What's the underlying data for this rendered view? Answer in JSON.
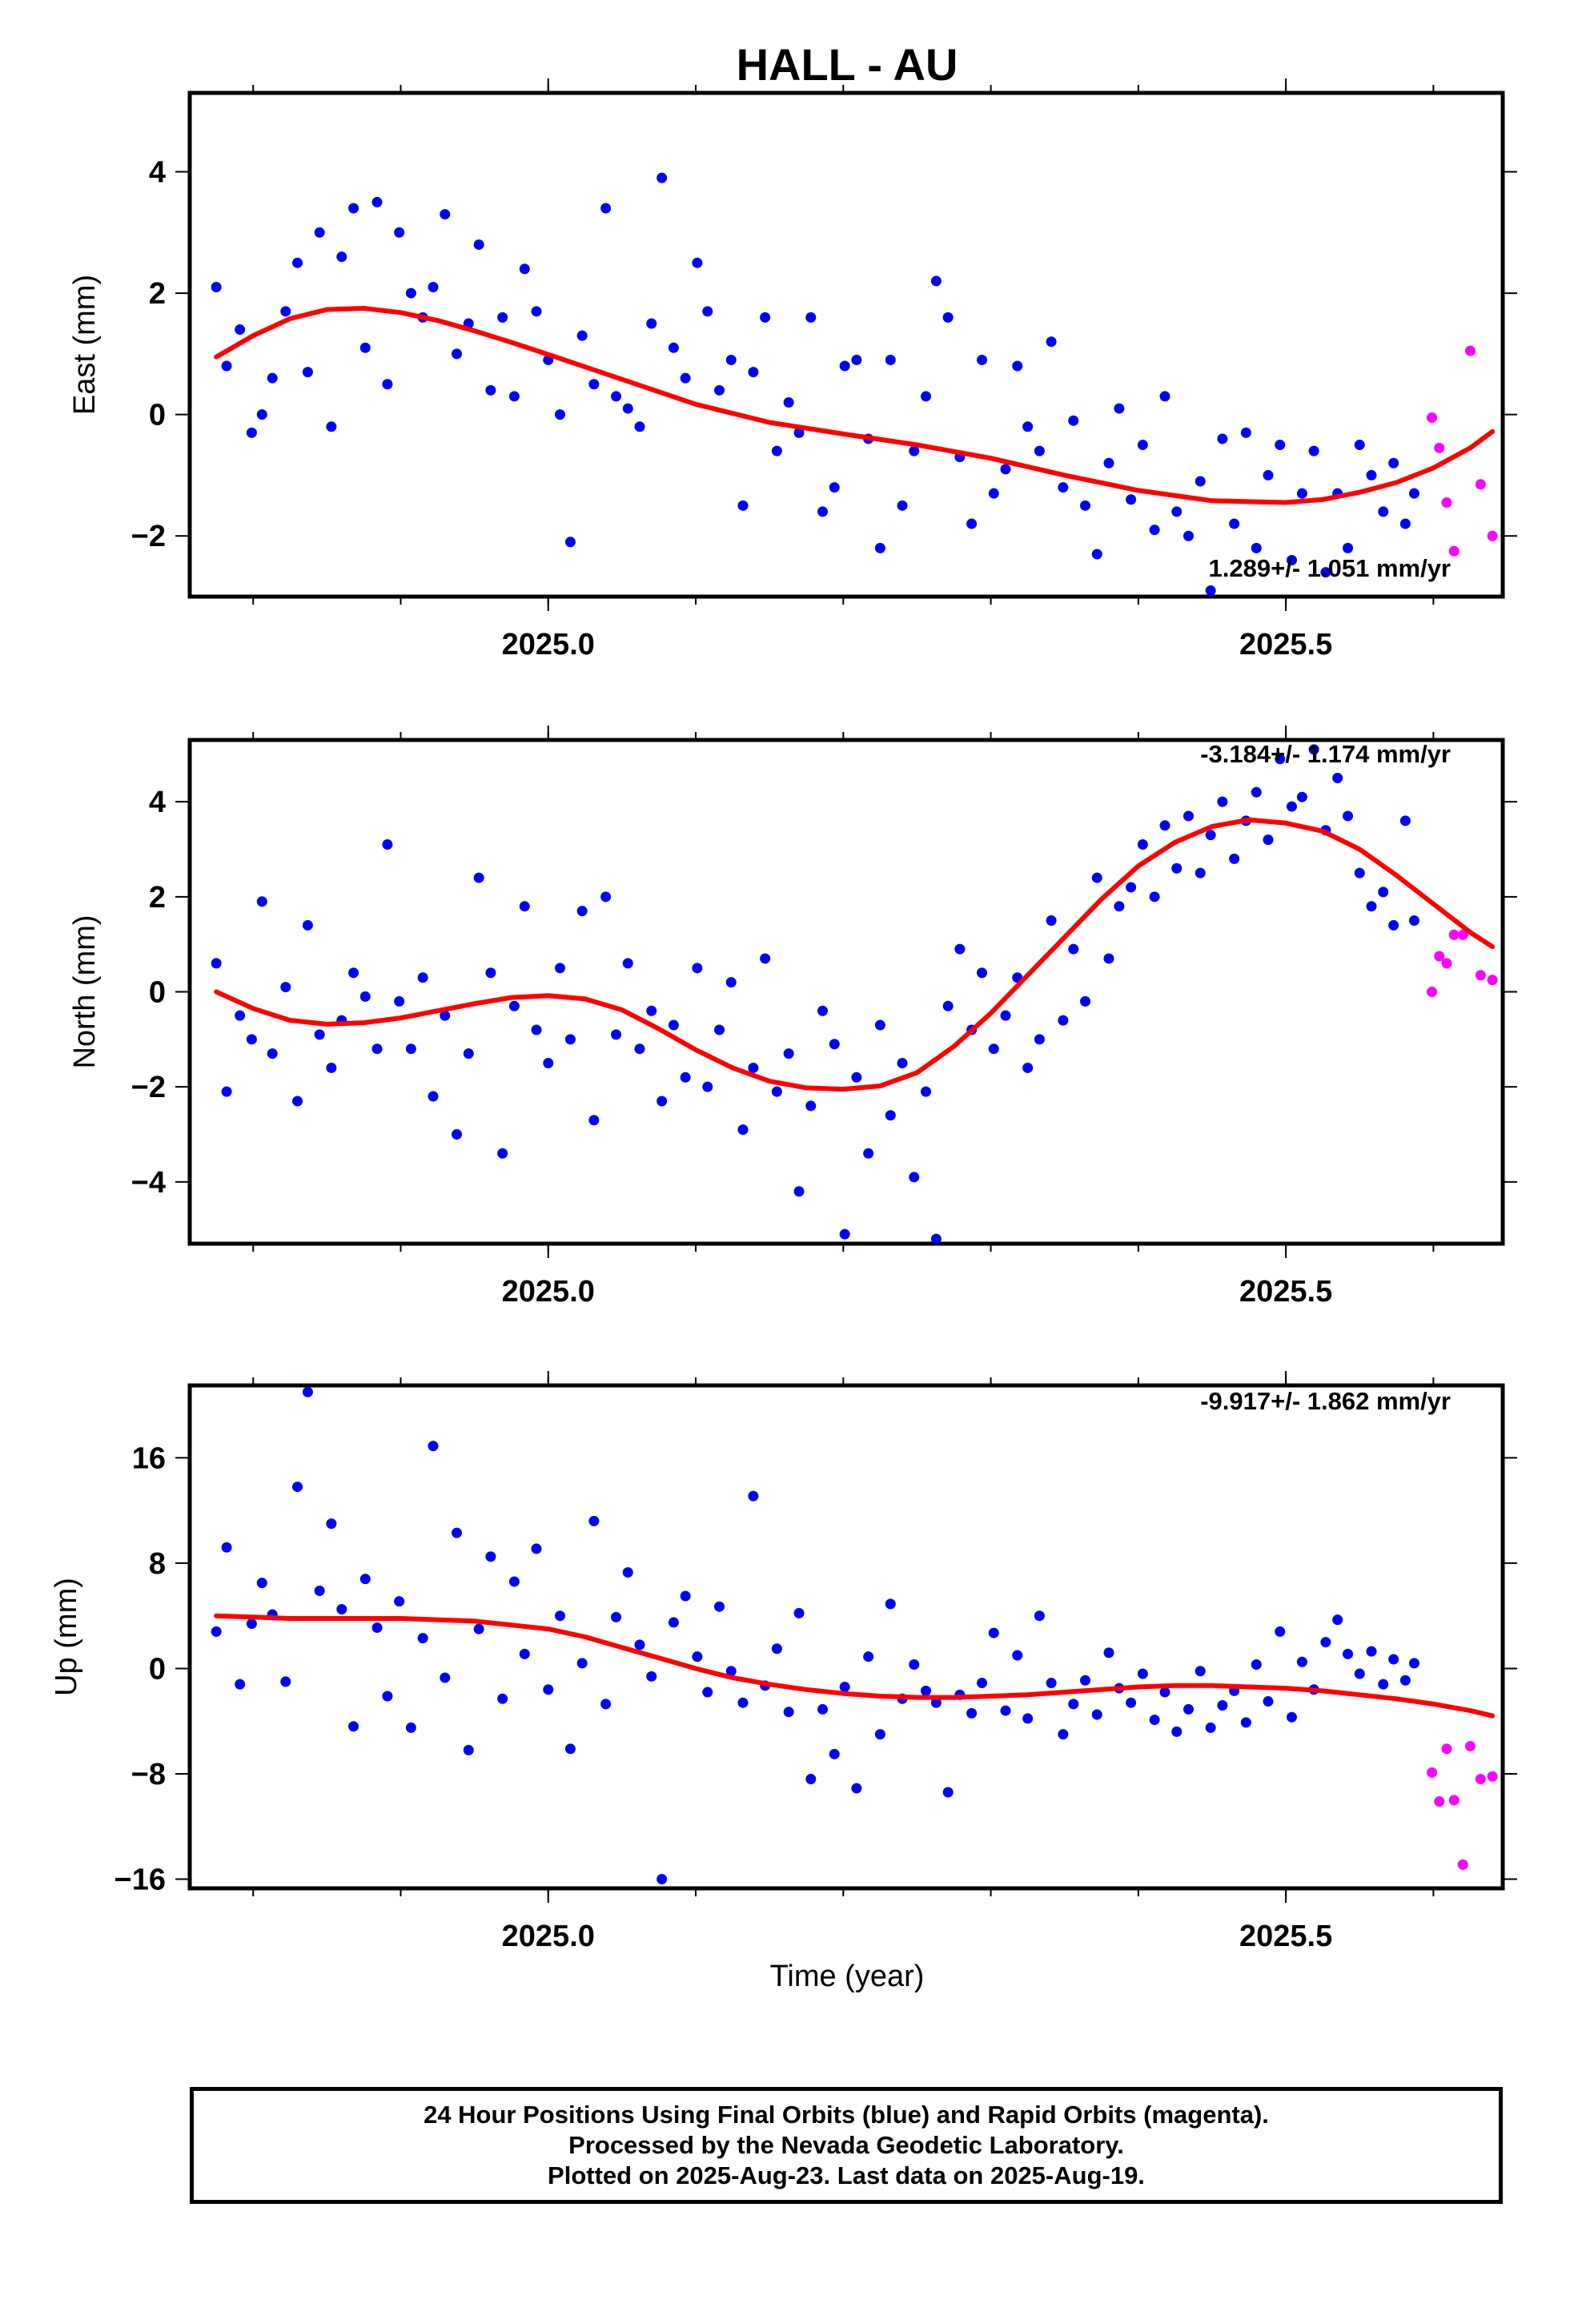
{
  "title": "HALL - AU",
  "xlabel": "Time (year)",
  "caption": [
    "24 Hour Positions Using Final Orbits (blue) and Rapid Orbits (magenta).",
    "Processed by the Nevada Geodetic Laboratory.",
    "Plotted on 2025-Aug-23. Last data on 2025-Aug-19."
  ],
  "colors": {
    "final": "#0000ff",
    "rapid": "#ff00ff",
    "fit": "#ff0000",
    "frame": "#000000"
  },
  "chart_data": [
    {
      "type": "scatter",
      "ylabel": "East (mm)",
      "rate": "1.289+/- 1.051 mm/yr",
      "xlim": [
        2024.757,
        2025.647
      ],
      "ylim": [
        -3.0,
        5.3
      ],
      "xticks": [
        2025.0,
        2025.5
      ],
      "xticklabels": [
        "2025.0",
        "2025.5"
      ],
      "yticks": [
        -2,
        0,
        2,
        4
      ],
      "yticklabels": [
        "−2",
        "0",
        "2",
        "4"
      ],
      "series": [
        {
          "orbit": "final",
          "x": [
            2024.775,
            2024.782,
            2024.791,
            2024.799,
            2024.806,
            2024.813,
            2024.822,
            2024.83,
            2024.837,
            2024.845,
            2024.853,
            2024.86,
            2024.868,
            2024.876,
            2024.884,
            2024.891,
            2024.899,
            2024.907,
            2024.915,
            2024.922,
            2024.93,
            2024.938,
            2024.946,
            2024.953,
            2024.961,
            2024.969,
            2024.977,
            2024.984,
            2024.992,
            2025.0,
            2025.008,
            2025.015,
            2025.023,
            2025.031,
            2025.039,
            2025.046,
            2025.054,
            2025.062,
            2025.07,
            2025.077,
            2025.085,
            2025.093,
            2025.101,
            2025.108,
            2025.116,
            2025.124,
            2025.132,
            2025.139,
            2025.147,
            2025.155,
            2025.163,
            2025.17,
            2025.178,
            2025.186,
            2025.194,
            2025.201,
            2025.209,
            2025.217,
            2025.225,
            2025.232,
            2025.24,
            2025.248,
            2025.256,
            2025.263,
            2025.271,
            2025.279,
            2025.287,
            2025.294,
            2025.302,
            2025.31,
            2025.318,
            2025.325,
            2025.333,
            2025.341,
            2025.349,
            2025.356,
            2025.364,
            2025.372,
            2025.38,
            2025.387,
            2025.395,
            2025.403,
            2025.411,
            2025.418,
            2025.426,
            2025.434,
            2025.442,
            2025.449,
            2025.457,
            2025.465,
            2025.473,
            2025.48,
            2025.488,
            2025.496,
            2025.504,
            2025.511,
            2025.519,
            2025.527,
            2025.535,
            2025.542,
            2025.55,
            2025.558,
            2025.566,
            2025.573,
            2025.581,
            2025.587
          ],
          "y": [
            2.1,
            0.8,
            1.4,
            -0.3,
            0.0,
            0.6,
            1.7,
            2.5,
            0.7,
            3.0,
            -0.2,
            2.6,
            3.4,
            1.1,
            3.5,
            0.5,
            3.0,
            2.0,
            1.6,
            2.1,
            3.3,
            1.0,
            1.5,
            2.8,
            0.4,
            1.6,
            0.3,
            2.4,
            1.7,
            0.9,
            0.0,
            -2.1,
            1.3,
            0.5,
            3.4,
            0.3,
            0.1,
            -0.2,
            1.5,
            3.9,
            1.1,
            0.6,
            2.5,
            1.7,
            0.4,
            0.9,
            -1.5,
            0.7,
            1.6,
            -0.6,
            0.2,
            -0.3,
            1.6,
            -1.6,
            -1.2,
            0.8,
            0.9,
            -0.4,
            -2.2,
            0.9,
            -1.5,
            -0.6,
            0.3,
            2.2,
            1.6,
            -0.7,
            -1.8,
            0.9,
            -1.3,
            -0.9,
            0.8,
            -0.2,
            -0.6,
            1.2,
            -1.2,
            -0.1,
            -1.5,
            -2.3,
            -0.8,
            0.1,
            -1.4,
            -0.5,
            -1.9,
            0.3,
            -1.6,
            -2.0,
            -1.1,
            -2.9,
            -0.4,
            -1.8,
            -0.3,
            -2.2,
            -1.0,
            -0.5,
            -2.4,
            -1.3,
            -0.6,
            -2.6,
            -1.3,
            -2.2,
            -0.5,
            -1.0,
            -1.6,
            -0.8,
            -1.8,
            -1.3
          ]
        },
        {
          "orbit": "rapid",
          "x": [
            2025.599,
            2025.604,
            2025.609,
            2025.614,
            2025.625,
            2025.632,
            2025.64
          ],
          "y": [
            -0.05,
            -0.55,
            -1.45,
            -2.25,
            1.05,
            -1.15,
            -2.0
          ]
        }
      ],
      "fit": {
        "x": [
          2024.775,
          2024.8,
          2024.825,
          2024.85,
          2024.875,
          2024.9,
          2024.925,
          2024.95,
          2024.975,
          2025.0,
          2025.05,
          2025.1,
          2025.15,
          2025.2,
          2025.25,
          2025.3,
          2025.35,
          2025.4,
          2025.45,
          2025.5,
          2025.525,
          2025.55,
          2025.575,
          2025.6,
          2025.625,
          2025.64
        ],
        "y": [
          0.95,
          1.3,
          1.58,
          1.73,
          1.75,
          1.68,
          1.55,
          1.38,
          1.19,
          0.99,
          0.58,
          0.17,
          -0.13,
          -0.32,
          -0.5,
          -0.72,
          -1.0,
          -1.25,
          -1.42,
          -1.45,
          -1.4,
          -1.28,
          -1.12,
          -0.88,
          -0.55,
          -0.28
        ]
      }
    },
    {
      "type": "scatter",
      "ylabel": "North (mm)",
      "rate": "-3.184+/- 1.174 mm/yr",
      "xlim": [
        2024.757,
        2025.647
      ],
      "ylim": [
        -5.3,
        5.3
      ],
      "xticks": [
        2025.0,
        2025.5
      ],
      "xticklabels": [
        "2025.0",
        "2025.5"
      ],
      "yticks": [
        -4,
        -2,
        0,
        2,
        4
      ],
      "yticklabels": [
        "−4",
        "−2",
        "0",
        "2",
        "4"
      ],
      "series": [
        {
          "orbit": "final",
          "x": [
            2024.775,
            2024.782,
            2024.791,
            2024.799,
            2024.806,
            2024.813,
            2024.822,
            2024.83,
            2024.837,
            2024.845,
            2024.853,
            2024.86,
            2024.868,
            2024.876,
            2024.884,
            2024.891,
            2024.899,
            2024.907,
            2024.915,
            2024.922,
            2024.93,
            2024.938,
            2024.946,
            2024.953,
            2024.961,
            2024.969,
            2024.977,
            2024.984,
            2024.992,
            2025.0,
            2025.008,
            2025.015,
            2025.023,
            2025.031,
            2025.039,
            2025.046,
            2025.054,
            2025.062,
            2025.07,
            2025.077,
            2025.085,
            2025.093,
            2025.101,
            2025.108,
            2025.116,
            2025.124,
            2025.132,
            2025.139,
            2025.147,
            2025.155,
            2025.163,
            2025.17,
            2025.178,
            2025.186,
            2025.194,
            2025.201,
            2025.209,
            2025.217,
            2025.225,
            2025.232,
            2025.24,
            2025.248,
            2025.256,
            2025.263,
            2025.271,
            2025.279,
            2025.287,
            2025.294,
            2025.302,
            2025.31,
            2025.318,
            2025.325,
            2025.333,
            2025.341,
            2025.349,
            2025.356,
            2025.364,
            2025.372,
            2025.38,
            2025.387,
            2025.395,
            2025.403,
            2025.411,
            2025.418,
            2025.426,
            2025.434,
            2025.442,
            2025.449,
            2025.457,
            2025.465,
            2025.473,
            2025.48,
            2025.488,
            2025.496,
            2025.504,
            2025.511,
            2025.519,
            2025.527,
            2025.535,
            2025.542,
            2025.55,
            2025.558,
            2025.566,
            2025.573,
            2025.581,
            2025.587
          ],
          "y": [
            0.6,
            -2.1,
            -0.5,
            -1.0,
            1.9,
            -1.3,
            0.1,
            -2.3,
            1.4,
            -0.9,
            -1.6,
            -0.6,
            0.4,
            -0.1,
            -1.2,
            3.1,
            -0.2,
            -1.2,
            0.3,
            -2.2,
            -0.5,
            -3.0,
            -1.3,
            2.4,
            0.4,
            -3.4,
            -0.3,
            1.8,
            -0.8,
            -1.5,
            0.5,
            -1.0,
            1.7,
            -2.7,
            2.0,
            -0.9,
            0.6,
            -1.2,
            -0.4,
            -2.3,
            -0.7,
            -1.8,
            0.5,
            -2.0,
            -0.8,
            0.2,
            -2.9,
            -1.6,
            0.7,
            -2.1,
            -1.3,
            -4.2,
            -2.4,
            -0.4,
            -1.1,
            -5.1,
            -1.8,
            -3.4,
            -0.7,
            -2.6,
            -1.5,
            -3.9,
            -2.1,
            -5.2,
            -0.3,
            0.9,
            -0.8,
            0.4,
            -1.2,
            -0.5,
            0.3,
            -1.6,
            -1.0,
            1.5,
            -0.6,
            0.9,
            -0.2,
            2.4,
            0.7,
            1.8,
            2.2,
            3.1,
            2.0,
            3.5,
            2.6,
            3.7,
            2.5,
            3.3,
            4.0,
            2.8,
            3.6,
            4.2,
            3.2,
            4.9,
            3.9,
            4.1,
            5.1,
            3.4,
            4.5,
            3.7,
            2.5,
            1.8,
            2.1,
            1.4,
            3.6,
            1.5
          ]
        },
        {
          "orbit": "rapid",
          "x": [
            2025.599,
            2025.604,
            2025.609,
            2025.614,
            2025.62,
            2025.632,
            2025.64
          ],
          "y": [
            0.0,
            0.75,
            0.6,
            1.2,
            1.2,
            0.35,
            0.25
          ]
        }
      ],
      "fit": {
        "x": [
          2024.775,
          2024.8,
          2024.825,
          2024.85,
          2024.875,
          2024.9,
          2024.925,
          2024.95,
          2024.975,
          2025.0,
          2025.025,
          2025.05,
          2025.075,
          2025.1,
          2025.125,
          2025.15,
          2025.175,
          2025.2,
          2025.225,
          2025.25,
          2025.275,
          2025.3,
          2025.325,
          2025.35,
          2025.375,
          2025.4,
          2025.425,
          2025.45,
          2025.475,
          2025.5,
          2025.525,
          2025.55,
          2025.575,
          2025.6,
          2025.625,
          2025.64
        ],
        "y": [
          0.0,
          -0.35,
          -0.6,
          -0.68,
          -0.65,
          -0.55,
          -0.4,
          -0.25,
          -0.12,
          -0.08,
          -0.15,
          -0.38,
          -0.78,
          -1.22,
          -1.6,
          -1.88,
          -2.02,
          -2.05,
          -1.98,
          -1.7,
          -1.15,
          -0.45,
          0.35,
          1.15,
          1.95,
          2.65,
          3.15,
          3.48,
          3.62,
          3.55,
          3.38,
          3.0,
          2.45,
          1.85,
          1.25,
          0.95
        ]
      }
    },
    {
      "type": "scatter",
      "ylabel": "Up (mm)",
      "rate": "-9.917+/- 1.862 mm/yr",
      "xlim": [
        2024.757,
        2025.647
      ],
      "ylim": [
        -16.7,
        21.5
      ],
      "xticks": [
        2025.0,
        2025.5
      ],
      "xticklabels": [
        "2025.0",
        "2025.5"
      ],
      "yticks": [
        -16,
        -8,
        0,
        8,
        16
      ],
      "yticklabels": [
        "−16",
        "−8",
        "0",
        "8",
        "16"
      ],
      "series": [
        {
          "orbit": "final",
          "x": [
            2024.775,
            2024.782,
            2024.791,
            2024.799,
            2024.806,
            2024.813,
            2024.822,
            2024.83,
            2024.837,
            2024.845,
            2024.853,
            2024.86,
            2024.868,
            2024.876,
            2024.884,
            2024.891,
            2024.899,
            2024.907,
            2024.915,
            2024.922,
            2024.93,
            2024.938,
            2024.946,
            2024.953,
            2024.961,
            2024.969,
            2024.977,
            2024.984,
            2024.992,
            2025.0,
            2025.008,
            2025.015,
            2025.023,
            2025.031,
            2025.039,
            2025.046,
            2025.054,
            2025.062,
            2025.07,
            2025.077,
            2025.085,
            2025.093,
            2025.101,
            2025.108,
            2025.116,
            2025.124,
            2025.132,
            2025.139,
            2025.147,
            2025.155,
            2025.163,
            2025.17,
            2025.178,
            2025.186,
            2025.194,
            2025.201,
            2025.209,
            2025.217,
            2025.225,
            2025.232,
            2025.24,
            2025.248,
            2025.256,
            2025.263,
            2025.271,
            2025.279,
            2025.287,
            2025.294,
            2025.302,
            2025.31,
            2025.318,
            2025.325,
            2025.333,
            2025.341,
            2025.349,
            2025.356,
            2025.364,
            2025.372,
            2025.38,
            2025.387,
            2025.395,
            2025.403,
            2025.411,
            2025.418,
            2025.426,
            2025.434,
            2025.442,
            2025.449,
            2025.457,
            2025.465,
            2025.473,
            2025.48,
            2025.488,
            2025.496,
            2025.504,
            2025.511,
            2025.519,
            2025.527,
            2025.535,
            2025.542,
            2025.55,
            2025.558,
            2025.566,
            2025.573,
            2025.581,
            2025.587
          ],
          "y": [
            2.8,
            9.2,
            -1.2,
            3.4,
            6.5,
            4.1,
            -1.0,
            13.8,
            21.0,
            5.9,
            11.0,
            4.5,
            -4.4,
            6.8,
            3.1,
            -2.1,
            5.1,
            -4.5,
            2.3,
            16.9,
            -0.7,
            10.3,
            -6.2,
            3.0,
            8.5,
            -2.3,
            6.6,
            1.1,
            9.1,
            -1.6,
            4.0,
            -6.1,
            0.4,
            11.2,
            -2.7,
            3.9,
            7.3,
            1.8,
            -0.6,
            -16.0,
            3.5,
            5.5,
            0.9,
            -1.8,
            4.7,
            -0.2,
            -2.6,
            13.1,
            -1.3,
            1.5,
            -3.3,
            4.2,
            -8.4,
            -3.1,
            -6.5,
            -1.4,
            -9.1,
            0.9,
            -5.0,
            4.9,
            -2.3,
            0.3,
            -1.7,
            -2.6,
            -9.4,
            -2.0,
            -3.4,
            -1.1,
            2.7,
            -3.2,
            1.0,
            -3.8,
            4.0,
            -1.1,
            -5.0,
            -2.7,
            -0.9,
            -3.5,
            1.2,
            -1.5,
            -2.6,
            -0.4,
            -3.9,
            -1.8,
            -4.8,
            -3.1,
            -0.2,
            -4.5,
            -2.8,
            -1.7,
            -4.1,
            0.3,
            -2.5,
            2.8,
            -3.7,
            0.5,
            -1.6,
            2.0,
            3.7,
            1.1,
            -0.4,
            1.3,
            -1.2,
            0.7,
            -0.9,
            0.4
          ]
        },
        {
          "orbit": "rapid",
          "x": [
            2025.599,
            2025.604,
            2025.609,
            2025.614,
            2025.62,
            2025.625,
            2025.632,
            2025.64
          ],
          "y": [
            -7.9,
            -10.1,
            -6.1,
            -10.0,
            -14.9,
            -5.9,
            -8.4,
            -8.2
          ]
        }
      ],
      "fit": {
        "x": [
          2024.775,
          2024.8,
          2024.825,
          2024.85,
          2024.875,
          2024.9,
          2024.925,
          2024.95,
          2024.975,
          2025.0,
          2025.025,
          2025.05,
          2025.075,
          2025.1,
          2025.125,
          2025.15,
          2025.175,
          2025.2,
          2025.225,
          2025.25,
          2025.275,
          2025.3,
          2025.325,
          2025.35,
          2025.375,
          2025.4,
          2025.425,
          2025.45,
          2025.475,
          2025.5,
          2025.525,
          2025.55,
          2025.575,
          2025.6,
          2025.625,
          2025.64
        ],
        "y": [
          4.0,
          3.9,
          3.8,
          3.8,
          3.8,
          3.8,
          3.7,
          3.6,
          3.3,
          3.0,
          2.4,
          1.6,
          0.8,
          0.0,
          -0.7,
          -1.2,
          -1.6,
          -1.9,
          -2.1,
          -2.2,
          -2.2,
          -2.1,
          -2.0,
          -1.8,
          -1.6,
          -1.4,
          -1.3,
          -1.3,
          -1.4,
          -1.5,
          -1.7,
          -2.0,
          -2.3,
          -2.7,
          -3.2,
          -3.6
        ]
      }
    }
  ]
}
